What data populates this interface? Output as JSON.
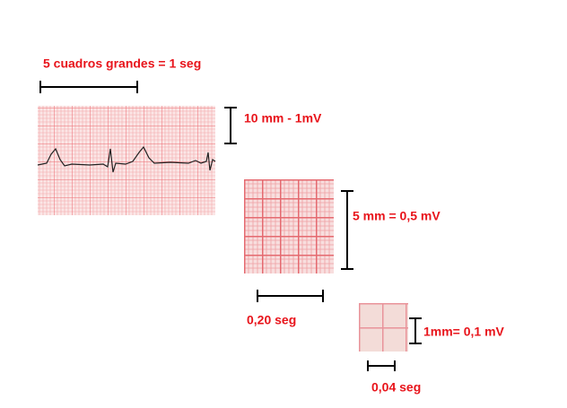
{
  "labels": {
    "one_second": "5 cuadros grandes = 1 seg",
    "ten_mm": "10 mm - 1mV",
    "five_mm": "5 mm = 0,5 mV",
    "point_twenty": "0,20 seg",
    "one_mm": "1mm= 0,1 mV",
    "point_zero_four": "0,04 seg"
  }
}
